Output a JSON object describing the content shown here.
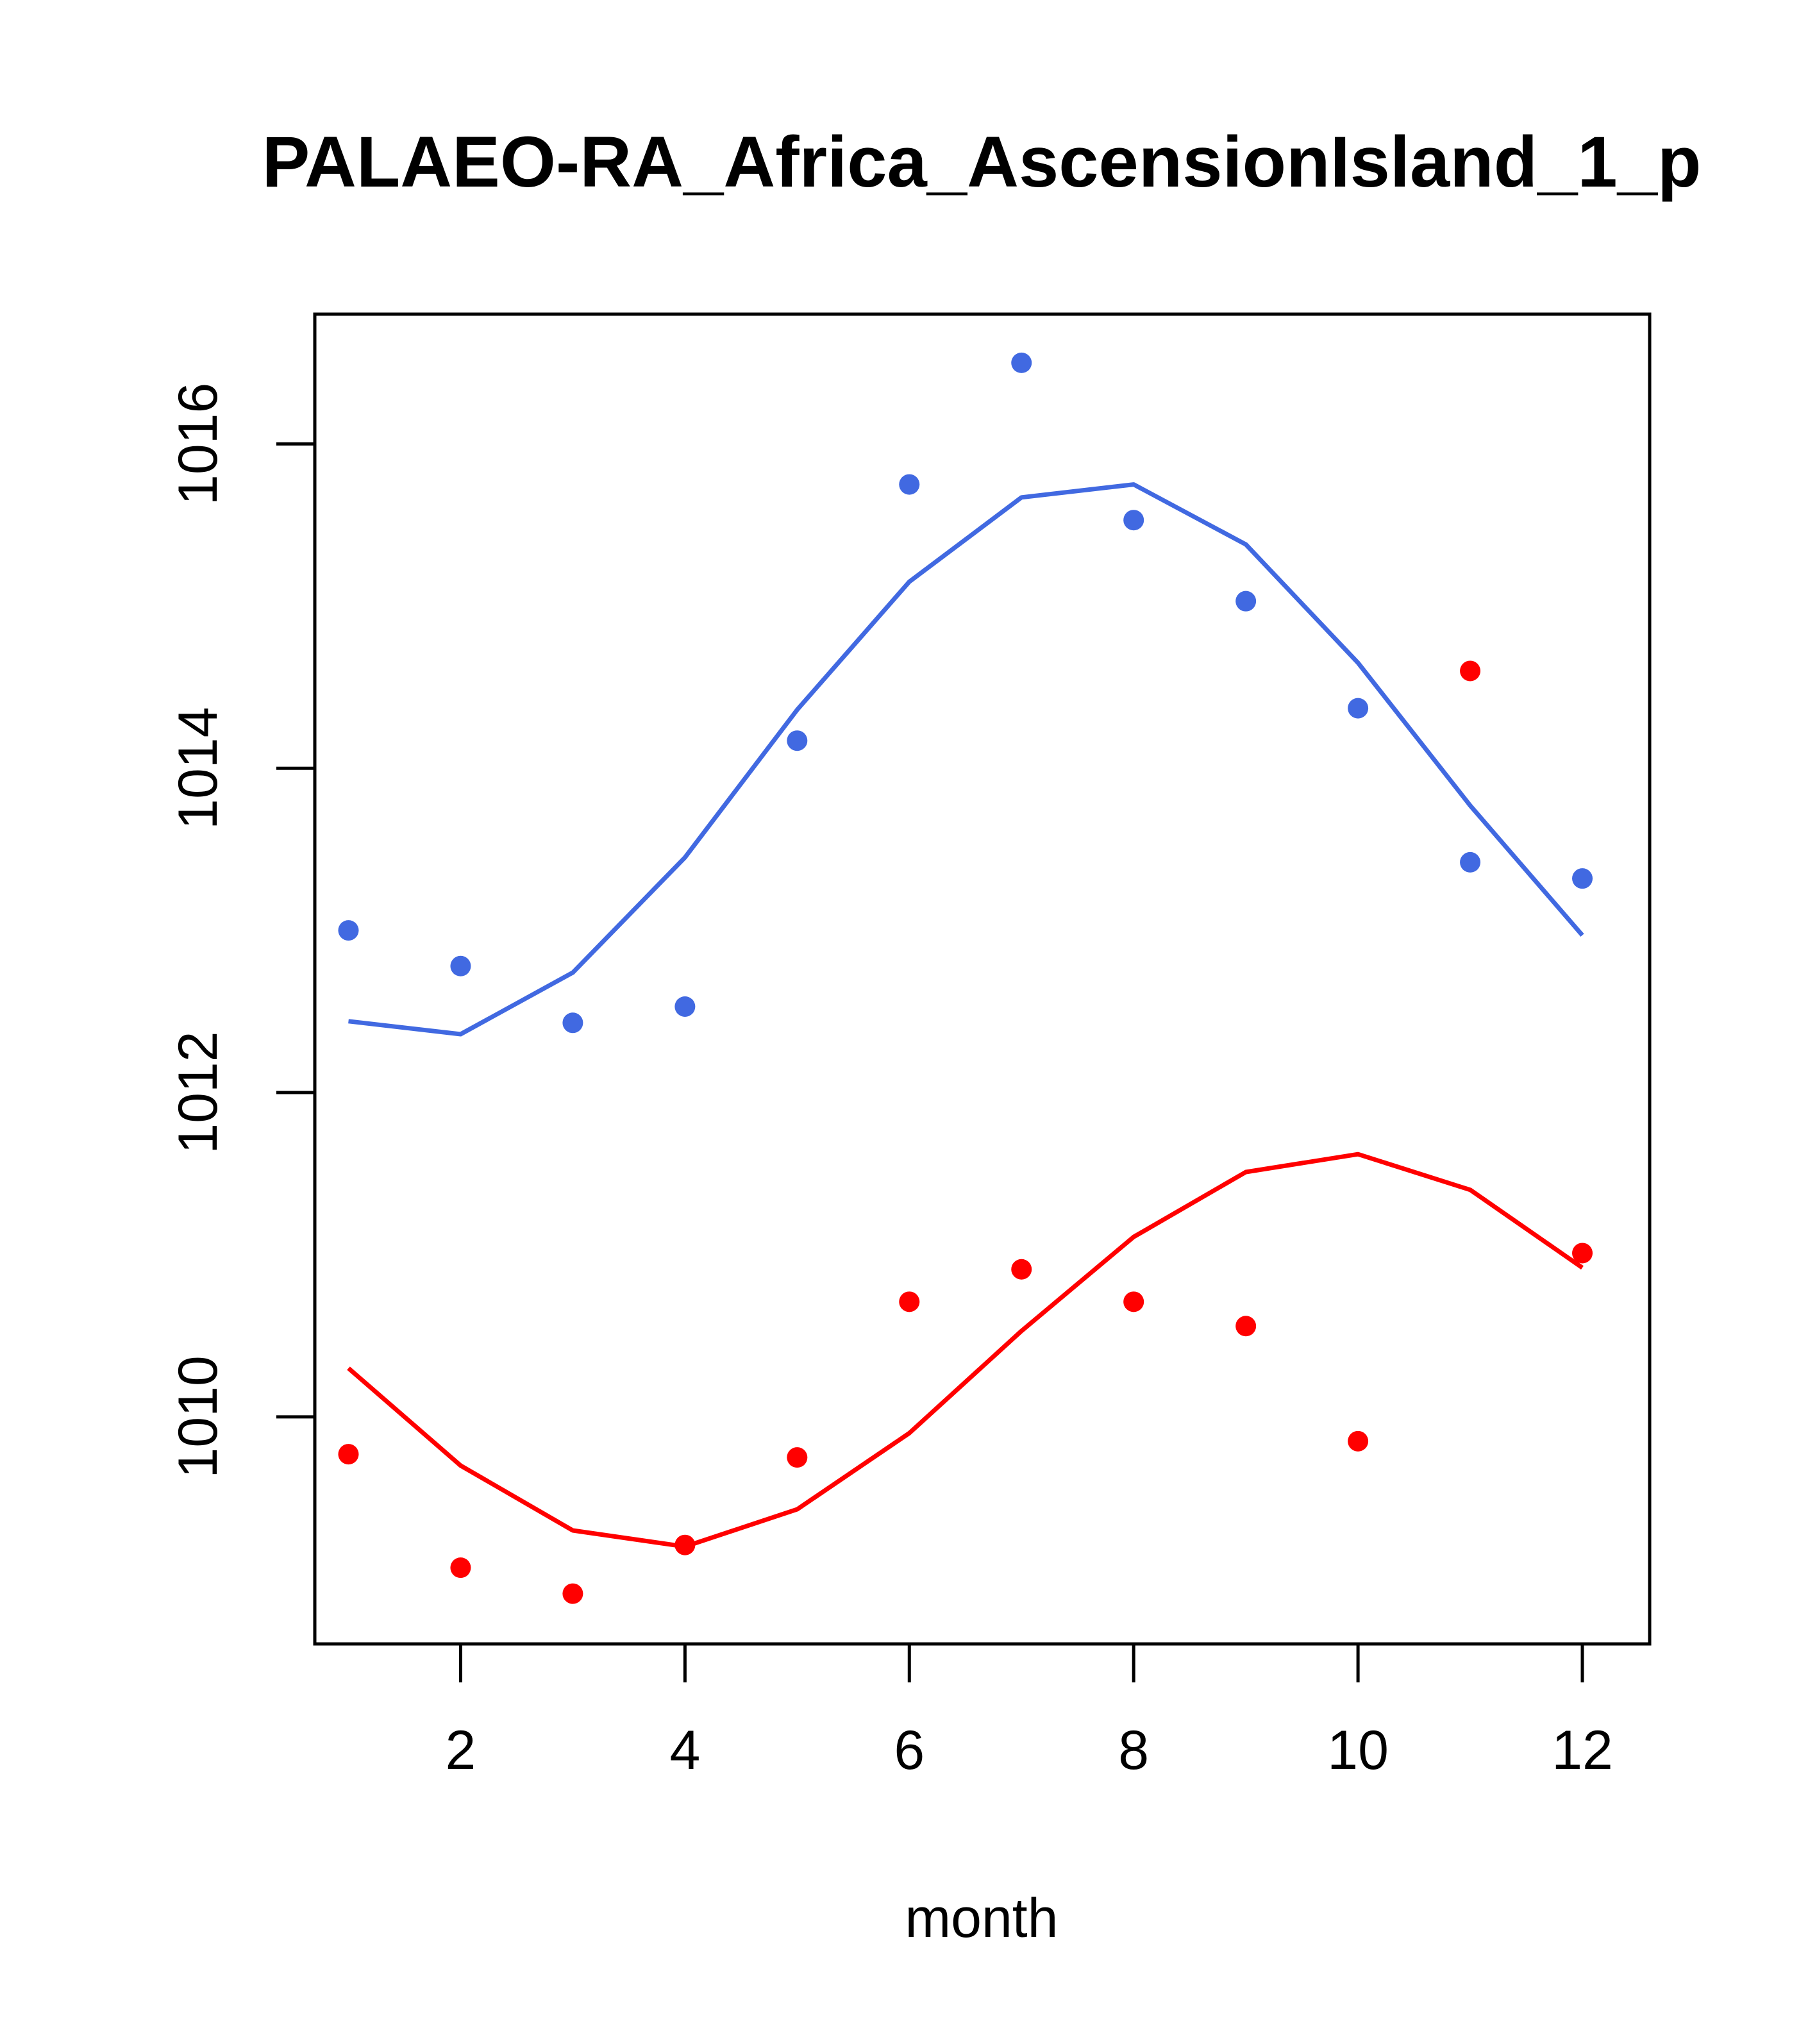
{
  "chart_data": {
    "type": "scatter",
    "title": "PALAEO-RA_Africa_AscensionIsland_1_p",
    "xlabel": "month",
    "ylabel": "",
    "x": [
      1,
      2,
      3,
      4,
      5,
      6,
      7,
      8,
      9,
      10,
      11,
      12
    ],
    "xlim": [
      0.7,
      12.6
    ],
    "ylim": [
      1008.6,
      1016.8
    ],
    "xticks": [
      2,
      4,
      6,
      8,
      10,
      12
    ],
    "yticks": [
      1010,
      1012,
      1014,
      1016
    ],
    "xtick_labels": [
      "2",
      "4",
      "6",
      "8",
      "10",
      "12"
    ],
    "ytick_labels": [
      "1010",
      "1012",
      "1014",
      "1016"
    ],
    "grid": false,
    "legend": "none",
    "series": [
      {
        "name": "blue points",
        "kind": "points",
        "color": "#4169E1",
        "values": [
          1013.0,
          1012.78,
          1012.43,
          1012.53,
          1014.17,
          1015.75,
          1016.5,
          1015.53,
          1015.03,
          1014.37,
          1013.42,
          1013.32
        ]
      },
      {
        "name": "blue line",
        "kind": "line",
        "color": "#4169E1",
        "values": [
          1012.44,
          1012.36,
          1012.74,
          1013.45,
          1014.36,
          1015.15,
          1015.67,
          1015.75,
          1015.38,
          1014.65,
          1013.77,
          1012.97
        ]
      },
      {
        "name": "red points",
        "kind": "points",
        "color": "#FF0000",
        "values": [
          1009.77,
          1009.07,
          1008.91,
          1009.21,
          1009.75,
          1010.71,
          1010.91,
          1010.71,
          1010.56,
          1009.85,
          1014.6,
          1011.01
        ]
      },
      {
        "name": "red line",
        "kind": "line",
        "color": "#FF0000",
        "values": [
          1010.3,
          1009.7,
          1009.3,
          1009.2,
          1009.43,
          1009.9,
          1010.53,
          1011.11,
          1011.51,
          1011.62,
          1011.4,
          1010.92
        ]
      }
    ]
  }
}
